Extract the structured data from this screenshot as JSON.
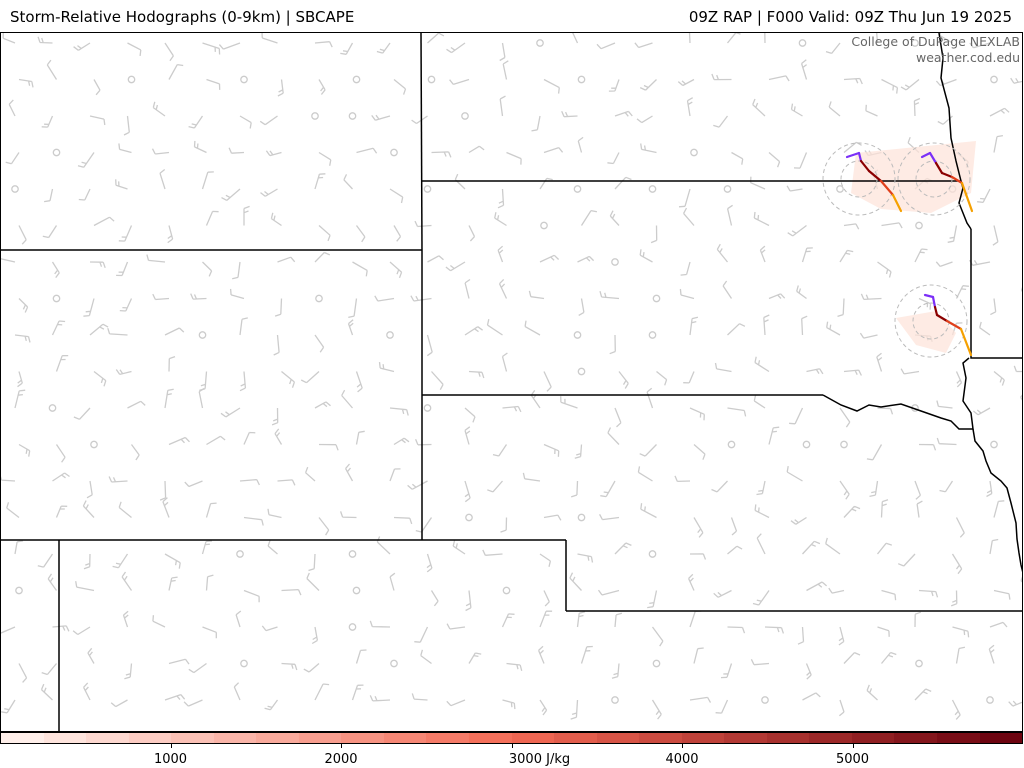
{
  "header": {
    "title_left": "Storm-Relative Hodographs (0-9km) | SBCAPE",
    "title_right": "09Z RAP | F000 Valid: 09Z Thu Jun 19 2025"
  },
  "credit": {
    "line1": "College of DuPage NEXLAB",
    "line2": "weather.cod.edu"
  },
  "colorbar": {
    "min": 0,
    "max": 6000,
    "step": 250,
    "ticks": [
      {
        "value": 1000,
        "label": "1000"
      },
      {
        "value": 2000,
        "label": "2000"
      },
      {
        "value": 3000,
        "label": "3000 J/kg"
      },
      {
        "value": 4000,
        "label": "4000"
      },
      {
        "value": 5000,
        "label": "5000"
      }
    ],
    "color_low": "#fff5f0",
    "color_mid": "#f46a55",
    "color_high": "#67000d"
  },
  "map": {
    "background": "#ffffff",
    "border_color": "#000000",
    "barb_color": "#cccccc",
    "hodograph_colors": [
      "#7b2ff7",
      "#8b0000",
      "#e0401c",
      "#f5a000"
    ],
    "hodograph_count": 3
  }
}
